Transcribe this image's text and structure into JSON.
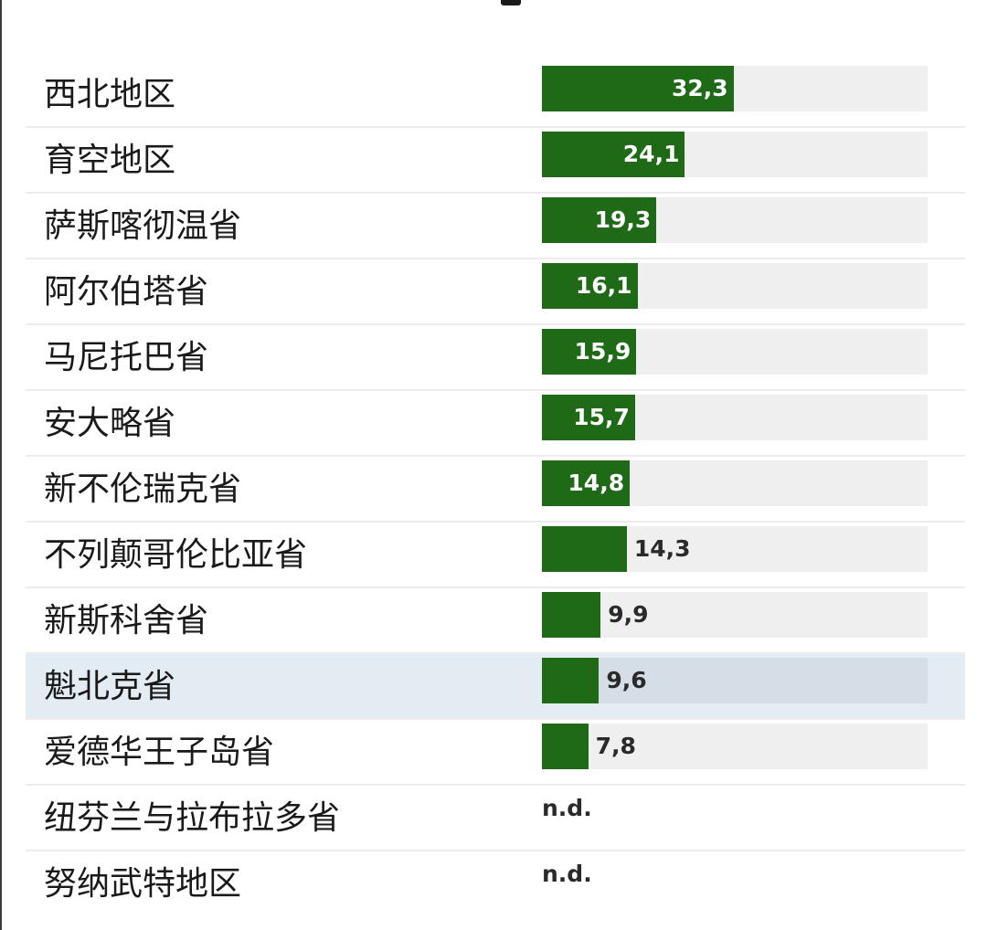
{
  "chart_data": {
    "type": "bar",
    "orientation": "horizontal",
    "categories": [
      "西北地区",
      "育空地区",
      "萨斯喀彻温省",
      "阿尔伯塔省",
      "马尼托巴省",
      "安大略省",
      "新不伦瑞克省",
      "不列颠哥伦比亚省",
      "新斯科舍省",
      "魁北克省",
      "爱德华王子岛省",
      "纽芬兰与拉布拉多省",
      "努纳武特地区"
    ],
    "values": [
      32.3,
      24.1,
      19.3,
      16.1,
      15.9,
      15.7,
      14.8,
      14.3,
      9.9,
      9.6,
      7.8,
      null,
      null
    ],
    "value_labels": [
      "32,3",
      "24,1",
      "19,3",
      "16,1",
      "15,9",
      "15,7",
      "14,8",
      "14,3",
      "9,9",
      "9,6",
      "7,8",
      "n.d.",
      "n.d."
    ],
    "highlighted_category": "魁北克省",
    "xlim": [
      0,
      65
    ],
    "bar_color": "#1e6a17",
    "track_color": "#efefef",
    "highlight_color": "#e3ebf3",
    "grid": false
  }
}
